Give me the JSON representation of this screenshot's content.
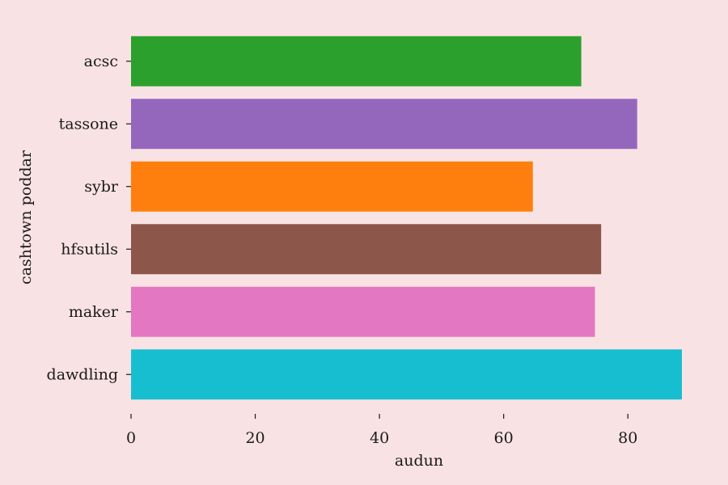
{
  "chart_data": {
    "type": "bar",
    "orientation": "horizontal",
    "categories": [
      "acsc",
      "tassone",
      "sybr",
      "hfsutils",
      "maker",
      "dawdling"
    ],
    "values": [
      72.5,
      81.5,
      64.7,
      75.7,
      74.7,
      88.7
    ],
    "colors": [
      "#2ca02c",
      "#9467bd",
      "#ff7f0e",
      "#8c564b",
      "#e377c2",
      "#17becf"
    ],
    "xlabel": "audun",
    "ylabel": "cashtown poddar",
    "xticks": [
      0,
      20,
      40,
      60,
      80
    ],
    "xlim": [
      0,
      88.7
    ],
    "grid": false,
    "background": "#f9e2e3"
  }
}
